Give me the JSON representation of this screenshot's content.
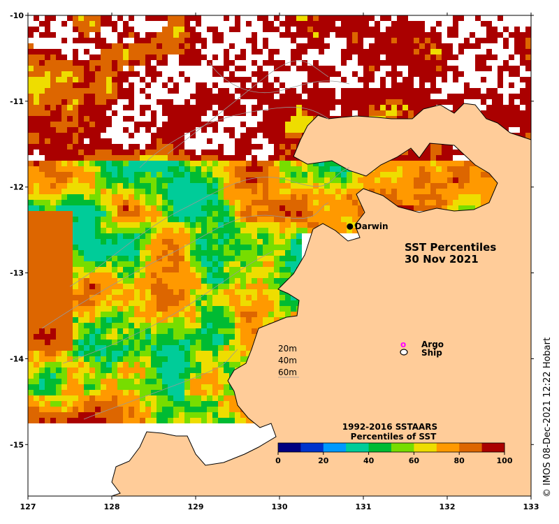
{
  "title_line1": "SST Percentiles",
  "title_line2": "30 Nov 2021",
  "city": {
    "name": "Darwin",
    "lon": 130.84,
    "lat": -12.46
  },
  "axes": {
    "lon_range": [
      127,
      133
    ],
    "lat_range": [
      -15.6,
      -10
    ],
    "x_ticks": [
      "127",
      "128",
      "129",
      "130",
      "131",
      "132",
      "133"
    ],
    "y_ticks": [
      "-10",
      "-11",
      "-12",
      "-13",
      "-14",
      "-15"
    ]
  },
  "depth_legend": [
    "20m",
    "40m",
    "60m"
  ],
  "marker_legend": {
    "argo": "Argo",
    "argo_symbol": "o",
    "ship": "Ship"
  },
  "colorbar": {
    "title_line1": "1992-2016 SSTAARS",
    "title_line2": "Percentiles of SST",
    "ticks": [
      "0",
      "20",
      "40",
      "60",
      "80",
      "100"
    ],
    "colors": [
      "#000080",
      "#0033cc",
      "#0099ff",
      "#00cc99",
      "#00bb33",
      "#77dd00",
      "#eedd00",
      "#ff9900",
      "#dd6600",
      "#aa0000"
    ]
  },
  "credit": "© IMOS 08-Dec-2021 12:22 Hobart",
  "land_color": "#ffcc99"
}
